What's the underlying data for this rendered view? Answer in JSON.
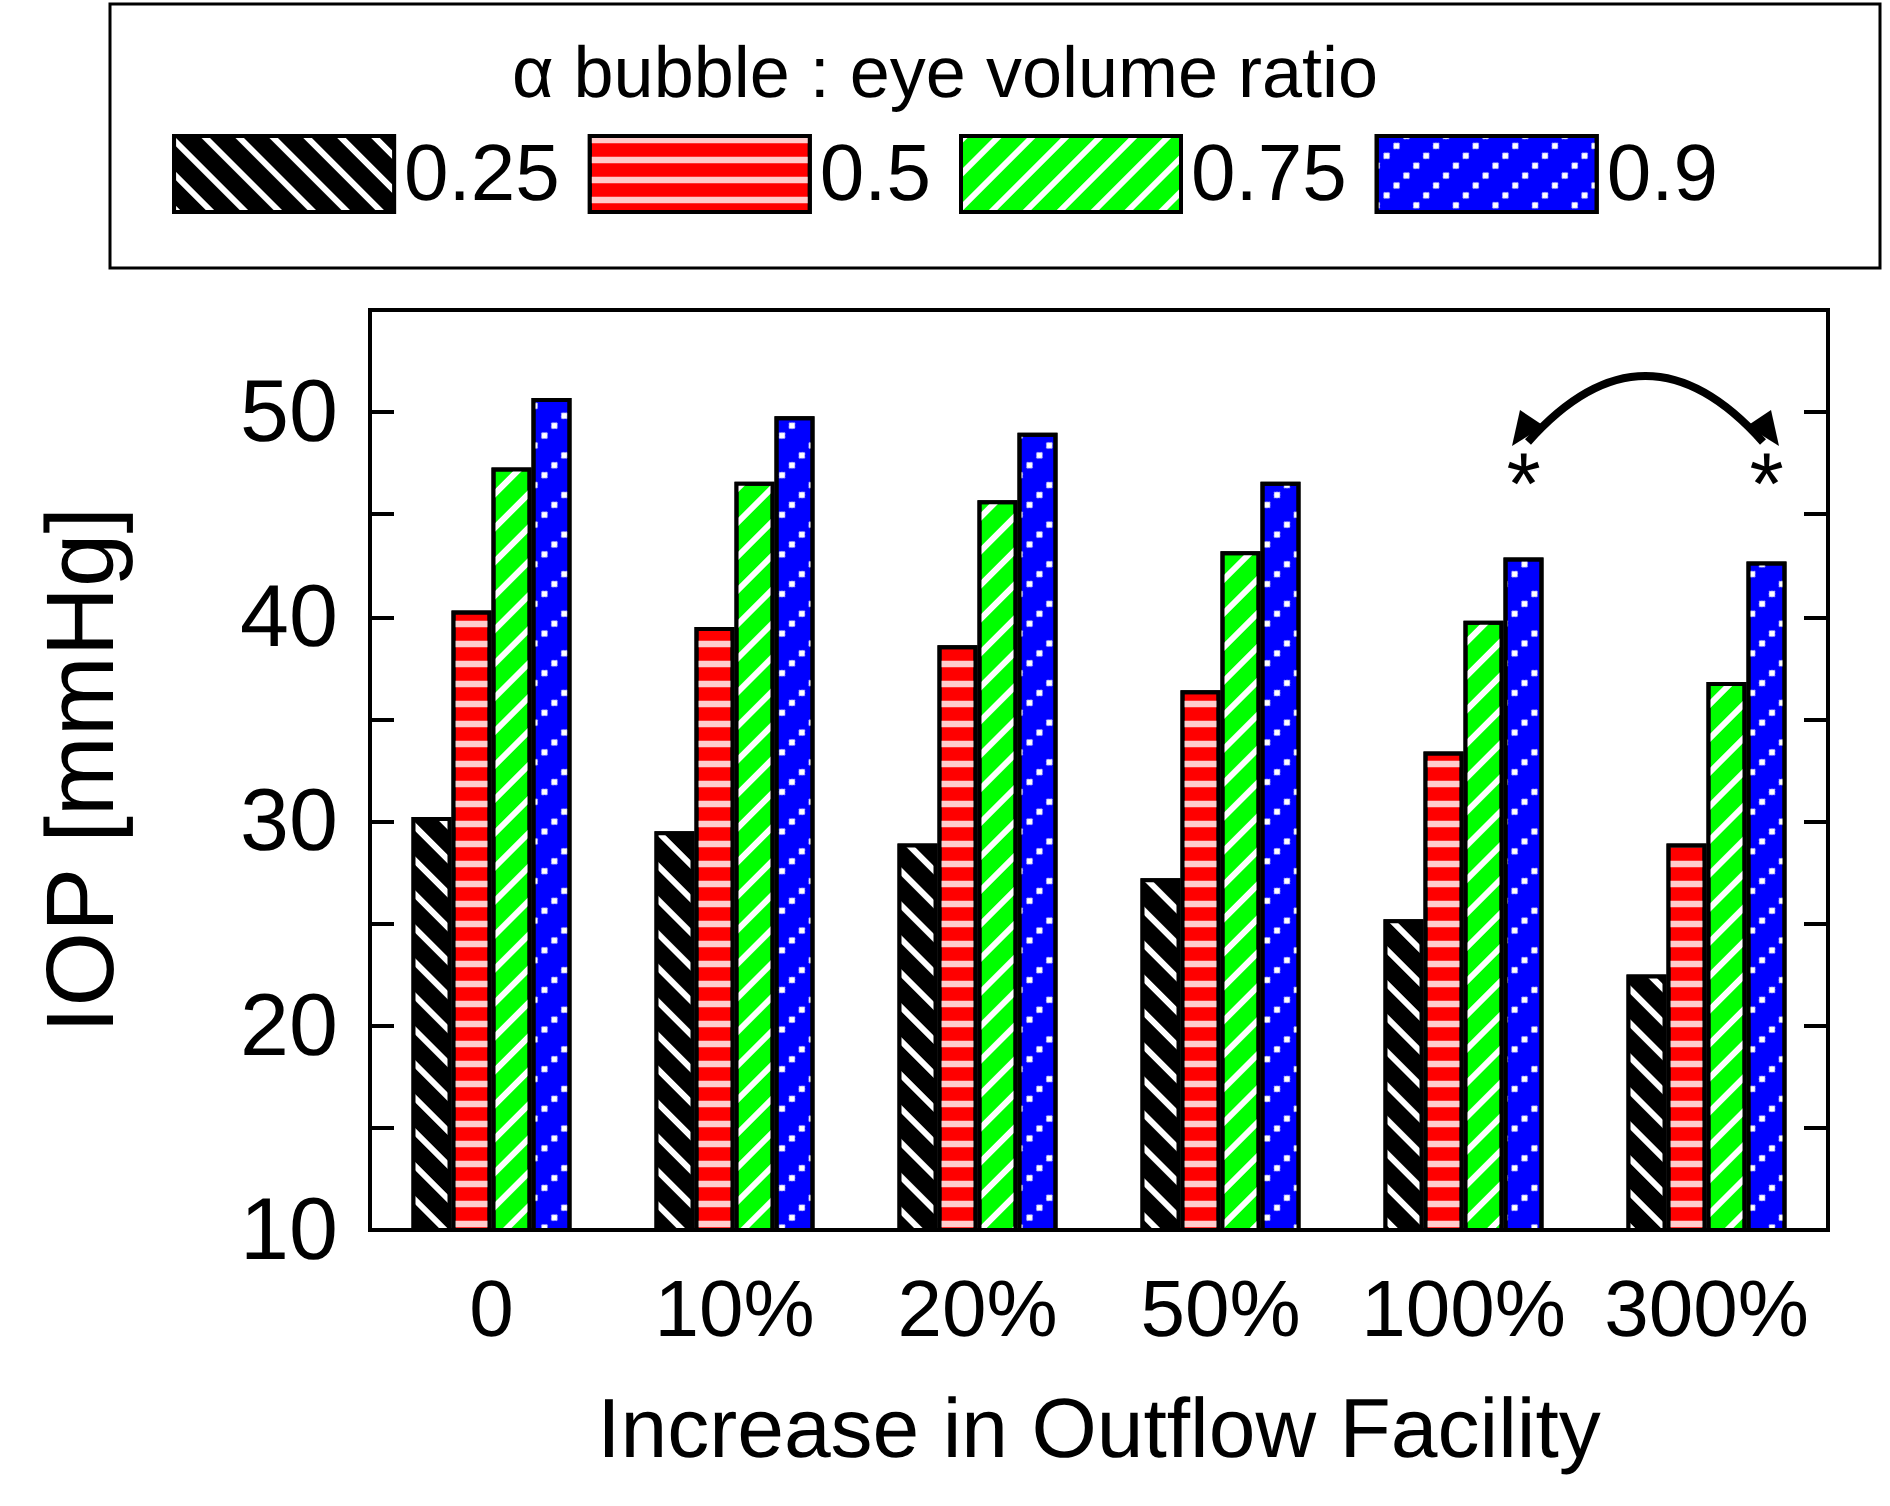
{
  "chart_data": {
    "type": "bar",
    "legend_title": "α bubble : eye volume ratio",
    "xlabel": "Increase in Outflow Facility",
    "ylabel": "IOP [mmHg]",
    "categories": [
      "0",
      "10%",
      "20%",
      "50%",
      "100%",
      "300%"
    ],
    "series": [
      {
        "name": "0.25",
        "color": "#000000",
        "values": [
          30.2,
          29.5,
          28.9,
          27.2,
          25.2,
          22.5
        ]
      },
      {
        "name": "0.5",
        "color": "#ff0000",
        "values": [
          40.3,
          39.5,
          38.6,
          36.4,
          33.4,
          28.9
        ]
      },
      {
        "name": "0.75",
        "color": "#00ff00",
        "values": [
          47.3,
          46.6,
          45.7,
          43.2,
          39.8,
          36.8
        ]
      },
      {
        "name": "0.9",
        "color": "#0000ff",
        "values": [
          50.7,
          49.8,
          49.0,
          46.6,
          42.9,
          42.7
        ]
      }
    ],
    "ylim": [
      10,
      55
    ],
    "yticks": [
      10,
      {
        "value": 15,
        "label": null
      },
      20,
      {
        "value": 25,
        "label": null
      },
      30,
      {
        "value": 35,
        "label": null
      },
      40,
      {
        "value": 45,
        "label": null
      },
      50
    ],
    "annotations": [
      "*",
      "*"
    ],
    "grid": false,
    "legend": "top"
  }
}
